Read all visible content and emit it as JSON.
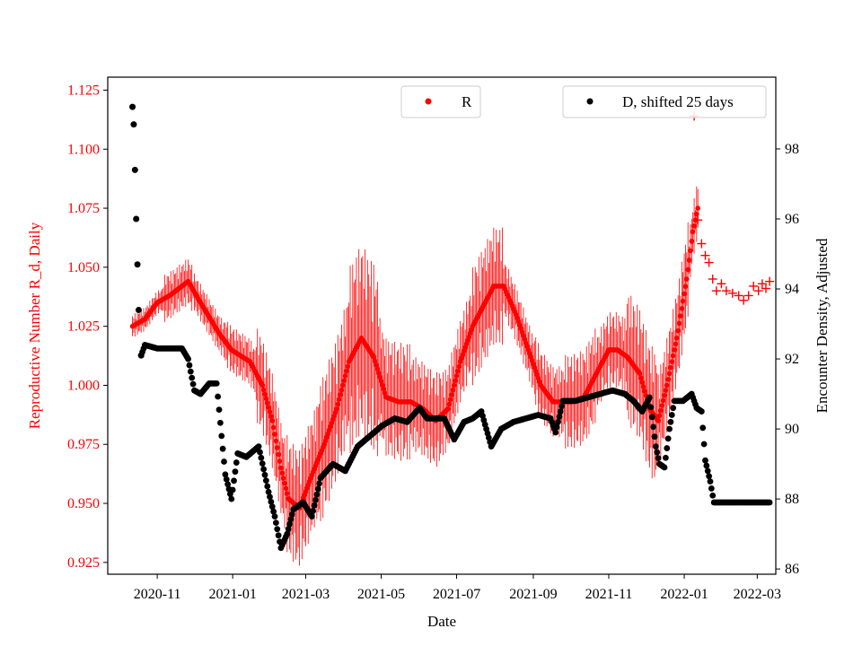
{
  "chart_data": {
    "type": "scatter",
    "xlabel": "Date",
    "ylabel_left": "Reproductive Number R_d, Daily",
    "ylabel_right": "Encounter Density, Adjusted",
    "x_ticks": [
      "2020-11",
      "2021-01",
      "2021-03",
      "2021-05",
      "2021-07",
      "2021-09",
      "2021-11",
      "2022-01",
      "2022-03"
    ],
    "y_left_ticks": [
      "0.925",
      "0.950",
      "0.975",
      "1.000",
      "1.025",
      "1.050",
      "1.075",
      "1.100",
      "1.125"
    ],
    "y_right_ticks": [
      "86",
      "88",
      "90",
      "92",
      "94",
      "96",
      "98"
    ],
    "y_left_range": [
      0.92,
      1.1305
    ],
    "y_right_range": [
      85.85,
      100.05
    ],
    "x_range_days": [
      -40,
      500
    ],
    "legend": [
      {
        "label": "R",
        "color": "#ff0000",
        "position": "top-center"
      },
      {
        "label": "D, shifted 25 days",
        "color": "#000000",
        "position": "top-right"
      }
    ],
    "series": [
      {
        "name": "R",
        "axis": "left",
        "color": "#ff0000",
        "note": "Daily R estimate with vertical error bars; day 0 = 2020-11-01",
        "keypoints_day_value": [
          [
            -20,
            1.025
          ],
          [
            -10,
            1.028
          ],
          [
            0,
            1.035
          ],
          [
            10,
            1.038
          ],
          [
            25,
            1.044
          ],
          [
            35,
            1.035
          ],
          [
            50,
            1.022
          ],
          [
            60,
            1.015
          ],
          [
            75,
            1.01
          ],
          [
            85,
            1.0
          ],
          [
            93,
            0.985
          ],
          [
            100,
            0.965
          ],
          [
            106,
            0.952
          ],
          [
            115,
            0.948
          ],
          [
            125,
            0.962
          ],
          [
            135,
            0.975
          ],
          [
            145,
            0.99
          ],
          [
            155,
            1.01
          ],
          [
            165,
            1.02
          ],
          [
            175,
            1.012
          ],
          [
            185,
            0.995
          ],
          [
            195,
            0.993
          ],
          [
            205,
            0.993
          ],
          [
            215,
            0.99
          ],
          [
            225,
            0.985
          ],
          [
            235,
            0.99
          ],
          [
            245,
            1.01
          ],
          [
            255,
            1.025
          ],
          [
            265,
            1.035
          ],
          [
            272,
            1.042
          ],
          [
            280,
            1.042
          ],
          [
            290,
            1.03
          ],
          [
            300,
            1.015
          ],
          [
            310,
            1.0
          ],
          [
            320,
            0.993
          ],
          [
            335,
            0.993
          ],
          [
            345,
            0.995
          ],
          [
            355,
            1.005
          ],
          [
            365,
            1.015
          ],
          [
            372,
            1.015
          ],
          [
            380,
            1.012
          ],
          [
            390,
            1.005
          ],
          [
            398,
            0.99
          ],
          [
            405,
            0.985
          ],
          [
            412,
            1.0
          ],
          [
            420,
            1.02
          ],
          [
            428,
            1.045
          ],
          [
            433,
            1.065
          ],
          [
            437,
            1.075
          ]
        ],
        "err_half_max": [
          0.005,
          0.01,
          0.008,
          0.01,
          0.02,
          0.025,
          0.03,
          0.04,
          0.025,
          0.02,
          0.018,
          0.025,
          0.012,
          0.015,
          0.02,
          0.016,
          0.028,
          0.02,
          0.012
        ],
        "plus_markers": [
          [
            434,
            1.114
          ],
          [
            437,
            1.07
          ],
          [
            440,
            1.06
          ],
          [
            443,
            1.055
          ],
          [
            446,
            1.052
          ],
          [
            449,
            1.045
          ],
          [
            452,
            1.04
          ],
          [
            456,
            1.043
          ],
          [
            460,
            1.04
          ],
          [
            465,
            1.039
          ],
          [
            470,
            1.038
          ],
          [
            474,
            1.036
          ],
          [
            478,
            1.038
          ],
          [
            482,
            1.042
          ],
          [
            486,
            1.04
          ],
          [
            489,
            1.043
          ],
          [
            492,
            1.041
          ],
          [
            495,
            1.044
          ]
        ]
      },
      {
        "name": "D, shifted 25 days",
        "axis": "right",
        "color": "#000000",
        "keypoints_day_value": [
          [
            -20,
            99.2
          ],
          [
            -19,
            98.7
          ],
          [
            -18,
            97.4
          ],
          [
            -17,
            96.0
          ],
          [
            -16,
            94.7
          ],
          [
            -15,
            93.4
          ],
          [
            -13,
            92.1
          ],
          [
            -10,
            92.4
          ],
          [
            0,
            92.3
          ],
          [
            10,
            92.3
          ],
          [
            20,
            92.3
          ],
          [
            25,
            92.0
          ],
          [
            30,
            91.1
          ],
          [
            35,
            91.0
          ],
          [
            42,
            91.3
          ],
          [
            48,
            91.3
          ],
          [
            52,
            89.8
          ],
          [
            55,
            88.7
          ],
          [
            60,
            88.0
          ],
          [
            65,
            89.3
          ],
          [
            72,
            89.2
          ],
          [
            82,
            89.5
          ],
          [
            90,
            88.2
          ],
          [
            95,
            87.5
          ],
          [
            100,
            86.6
          ],
          [
            105,
            87.0
          ],
          [
            110,
            87.7
          ],
          [
            118,
            87.9
          ],
          [
            125,
            87.5
          ],
          [
            132,
            88.6
          ],
          [
            142,
            89.0
          ],
          [
            152,
            88.8
          ],
          [
            162,
            89.5
          ],
          [
            172,
            89.8
          ],
          [
            182,
            90.1
          ],
          [
            192,
            90.3
          ],
          [
            202,
            90.2
          ],
          [
            212,
            90.6
          ],
          [
            218,
            90.3
          ],
          [
            225,
            90.3
          ],
          [
            232,
            90.3
          ],
          [
            240,
            89.7
          ],
          [
            248,
            90.2
          ],
          [
            255,
            90.3
          ],
          [
            262,
            90.5
          ],
          [
            270,
            89.5
          ],
          [
            278,
            90.0
          ],
          [
            288,
            90.2
          ],
          [
            298,
            90.3
          ],
          [
            308,
            90.4
          ],
          [
            318,
            90.3
          ],
          [
            322,
            89.9
          ],
          [
            328,
            90.8
          ],
          [
            338,
            90.8
          ],
          [
            348,
            90.9
          ],
          [
            358,
            91.0
          ],
          [
            368,
            91.1
          ],
          [
            378,
            91.0
          ],
          [
            385,
            90.8
          ],
          [
            392,
            90.5
          ],
          [
            398,
            90.9
          ],
          [
            403,
            89.5
          ],
          [
            406,
            89.0
          ],
          [
            410,
            88.9
          ],
          [
            414,
            90.0
          ],
          [
            418,
            90.8
          ],
          [
            425,
            90.8
          ],
          [
            432,
            91.0
          ],
          [
            436,
            90.6
          ],
          [
            440,
            90.5
          ],
          [
            443,
            89.1
          ],
          [
            447,
            88.5
          ],
          [
            450,
            87.9
          ],
          [
            470,
            87.9
          ],
          [
            495,
            87.9
          ]
        ]
      }
    ]
  }
}
